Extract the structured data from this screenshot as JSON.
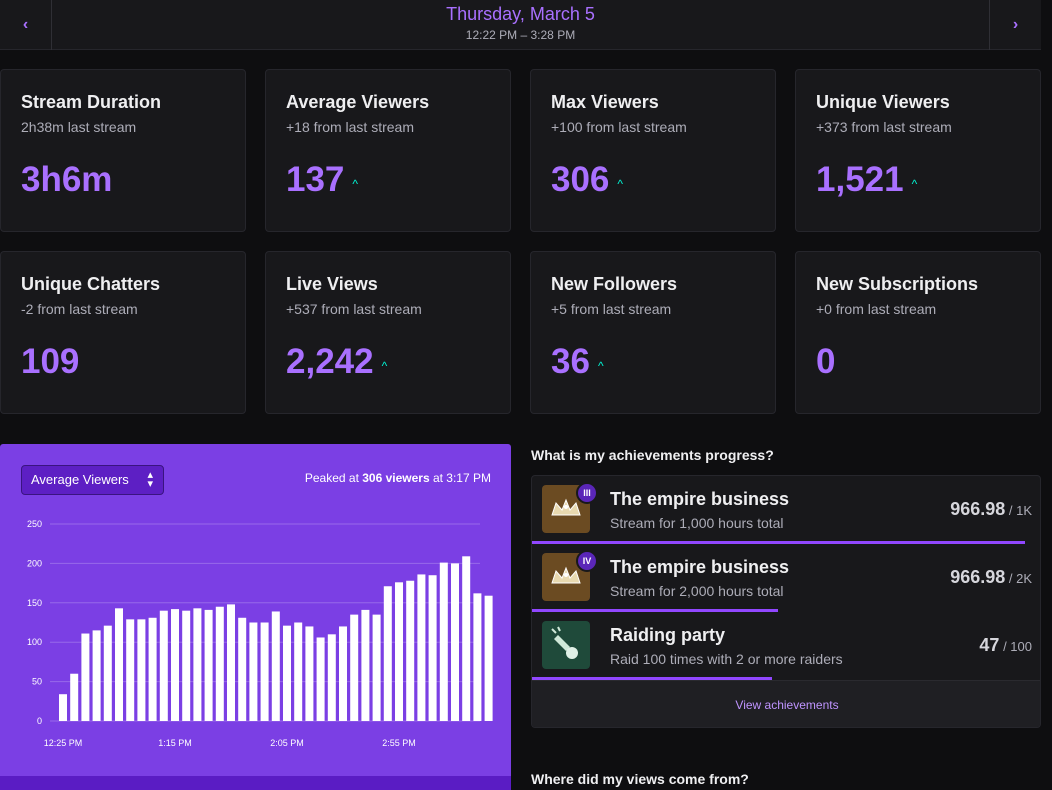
{
  "header": {
    "date": "Thursday, March 5",
    "time_range": "12:22 PM – 3:28 PM",
    "prev_icon": "‹",
    "next_icon": "›"
  },
  "stats": [
    {
      "title": "Stream Duration",
      "sub": "2h38m last stream",
      "value": "3h6m",
      "trend": ""
    },
    {
      "title": "Average Viewers",
      "sub": "+18 from last stream",
      "value": "137",
      "trend": "^"
    },
    {
      "title": "Max Viewers",
      "sub": "+100 from last stream",
      "value": "306",
      "trend": "^"
    },
    {
      "title": "Unique Viewers",
      "sub": "+373 from last stream",
      "value": "1,521",
      "trend": "^"
    },
    {
      "title": "Unique Chatters",
      "sub": "-2 from last stream",
      "value": "109",
      "trend": ""
    },
    {
      "title": "Live Views",
      "sub": "+537 from last stream",
      "value": "2,242",
      "trend": "^"
    },
    {
      "title": "New Followers",
      "sub": "+5 from last stream",
      "value": "36",
      "trend": "^"
    },
    {
      "title": "New Subscriptions",
      "sub": "+0 from last stream",
      "value": "0",
      "trend": ""
    }
  ],
  "chart_panel": {
    "metric_select": "Average Viewers",
    "peak_prefix": "Peaked at ",
    "peak_value": "306 viewers",
    "peak_suffix": " at 3:17 PM"
  },
  "chart_data": {
    "type": "bar",
    "title": "",
    "xlabel": "",
    "ylabel": "",
    "ylim": [
      0,
      250
    ],
    "yticks": [
      0,
      50,
      100,
      150,
      200,
      250
    ],
    "x_tick_labels": [
      "12:25 PM",
      "1:15 PM",
      "2:05 PM",
      "2:55 PM"
    ],
    "x_tick_bar_index": [
      0,
      10,
      20,
      30
    ],
    "grid": true,
    "values": [
      34,
      60,
      111,
      115,
      121,
      143,
      129,
      129,
      131,
      140,
      142,
      140,
      143,
      141,
      145,
      148,
      131,
      125,
      125,
      139,
      121,
      125,
      120,
      106,
      110,
      120,
      135,
      141,
      135,
      171,
      176,
      178,
      186,
      185,
      201,
      200,
      209,
      162,
      159
    ]
  },
  "achievements": {
    "heading": "What is my achievements progress?",
    "items": [
      {
        "name": "The empire business",
        "desc": "Stream for 1,000 hours total",
        "badge": "III",
        "current": "966.98",
        "target": "/ 1K",
        "progress": 0.967,
        "icon": "crown-icon"
      },
      {
        "name": "The empire business",
        "desc": "Stream for 2,000 hours total",
        "badge": "IV",
        "current": "966.98",
        "target": "/ 2K",
        "progress": 0.483,
        "icon": "crown-icon"
      },
      {
        "name": "Raiding party",
        "desc": "Raid 100 times with 2 or more raiders",
        "badge": "",
        "current": "47",
        "target": "/ 100",
        "progress": 0.47,
        "icon": "rocket-icon"
      }
    ],
    "view_link": "View achievements"
  },
  "views_heading": "Where did my views come from?",
  "colors": {
    "accent": "#a970ff",
    "trend": "#00f5d4",
    "chart_bg": "#7b3fe4",
    "bar": "#ffffff"
  }
}
